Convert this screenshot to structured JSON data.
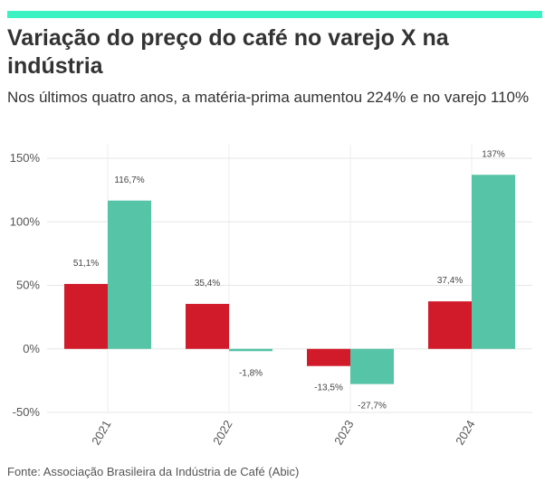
{
  "header": {
    "title": "Variação do preço do café no varejo X na indústria",
    "subtitle": "Nos últimos quatro anos, a matéria-prima aumentou 224% e no varejo 110%"
  },
  "footer": {
    "source": "Fonte: Associação Brasileira da Indústria de Café (Abic)"
  },
  "colors": {
    "accent_bar": "#3bf2c2",
    "series_red": "#d11b2a",
    "series_green": "#56c4a6"
  },
  "chart_data": {
    "type": "bar",
    "categories": [
      "2021",
      "2022",
      "2023",
      "2024"
    ],
    "series": [
      {
        "values": [
          51.1,
          35.4,
          -13.5,
          37.4
        ],
        "labels": [
          "51,1%",
          "35,4%",
          "-13,5%",
          "37,4%"
        ],
        "color": "#d11b2a"
      },
      {
        "values": [
          116.7,
          -1.8,
          -27.7,
          137
        ],
        "labels": [
          "116,7%",
          "-1,8%",
          "-27,7%",
          "137%"
        ],
        "color": "#56c4a6"
      }
    ],
    "yticks": [
      150,
      100,
      50,
      0,
      -50
    ],
    "ytick_labels": [
      "150%",
      "100%",
      "50%",
      "0%",
      "-50%"
    ],
    "ylim": [
      -50,
      150
    ],
    "grid": true,
    "legend": "none"
  }
}
